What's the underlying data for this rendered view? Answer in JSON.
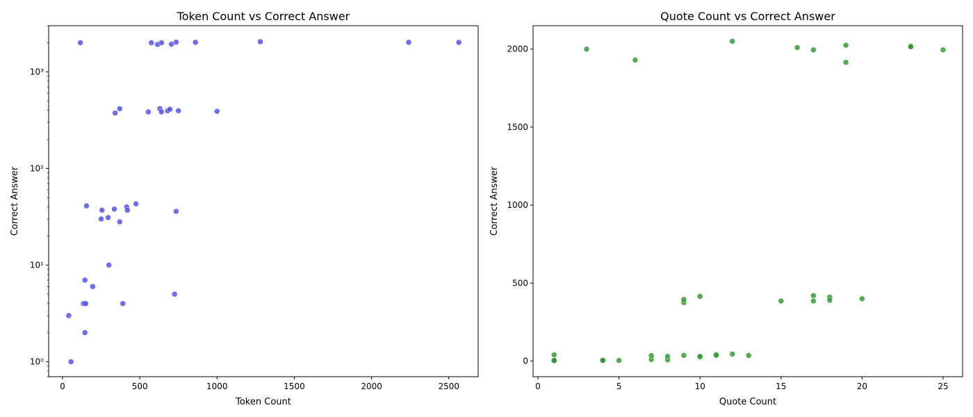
{
  "chart_data": [
    {
      "type": "scatter",
      "title": "Token Count vs Correct Answer",
      "xlabel": "Token Count",
      "ylabel": "Correct Answer",
      "xlim": [
        -90,
        2690
      ],
      "ylim": [
        0.7,
        3000
      ],
      "yscale": "log",
      "grid": false,
      "xticks": [
        0,
        500,
        1000,
        1500,
        2000,
        2500
      ],
      "xtick_labels": [
        "0",
        "500",
        "1000",
        "1500",
        "2000",
        "2500"
      ],
      "yticks": [
        1,
        10,
        100,
        1000
      ],
      "ytick_labels": [
        "10⁰",
        "10¹",
        "10²",
        "10³"
      ],
      "color": "#4a4ae8",
      "series": [
        {
          "points": [
            [
              55,
              1
            ],
            [
              40,
              3
            ],
            [
              145,
              2
            ],
            [
              135,
              4
            ],
            [
              150,
              4
            ],
            [
              390,
              4
            ],
            [
              145,
              7
            ],
            [
              195,
              6
            ],
            [
              300,
              10
            ],
            [
              725,
              5
            ],
            [
              155,
              41
            ],
            [
              255,
              37
            ],
            [
              250,
              30
            ],
            [
              295,
              31
            ],
            [
              335,
              38
            ],
            [
              370,
              28
            ],
            [
              415,
              40
            ],
            [
              420,
              37
            ],
            [
              475,
              43
            ],
            [
              735,
              36
            ],
            [
              340,
              375
            ],
            [
              370,
              415
            ],
            [
              555,
              385
            ],
            [
              630,
              415
            ],
            [
              640,
              385
            ],
            [
              680,
              395
            ],
            [
              695,
              410
            ],
            [
              750,
              395
            ],
            [
              1000,
              390
            ],
            [
              115,
              2000
            ],
            [
              575,
              2000
            ],
            [
              615,
              1920
            ],
            [
              640,
              2000
            ],
            [
              705,
              1930
            ],
            [
              735,
              2025
            ],
            [
              860,
              2020
            ],
            [
              1280,
              2050
            ],
            [
              2240,
              2020
            ],
            [
              2565,
              2015
            ]
          ]
        }
      ]
    },
    {
      "type": "scatter",
      "title": "Quote Count vs Correct Answer",
      "xlabel": "Quote Count",
      "ylabel": "Correct Answer",
      "xlim": [
        -0.3,
        26.2
      ],
      "ylim": [
        -100,
        2150
      ],
      "yscale": "linear",
      "grid": false,
      "xticks": [
        0,
        5,
        10,
        15,
        20,
        25
      ],
      "xtick_labels": [
        "0",
        "5",
        "10",
        "15",
        "20",
        "25"
      ],
      "yticks": [
        0,
        500,
        1000,
        1500,
        2000
      ],
      "ytick_labels": [
        "0",
        "500",
        "1000",
        "1500",
        "2000"
      ],
      "color": "#2a962a",
      "series": [
        {
          "points": [
            [
              1,
              1
            ],
            [
              1,
              3
            ],
            [
              1,
              4
            ],
            [
              1,
              40
            ],
            [
              4,
              2
            ],
            [
              4,
              3
            ],
            [
              4,
              5
            ],
            [
              5,
              4
            ],
            [
              7,
              10
            ],
            [
              7,
              35
            ],
            [
              8,
              8
            ],
            [
              8,
              30
            ],
            [
              9,
              37
            ],
            [
              9,
              375
            ],
            [
              9,
              395
            ],
            [
              10,
              25
            ],
            [
              10,
              30
            ],
            [
              10,
              415
            ],
            [
              11,
              35
            ],
            [
              11,
              40
            ],
            [
              12,
              45
            ],
            [
              13,
              36
            ],
            [
              15,
              385
            ],
            [
              17,
              420
            ],
            [
              17,
              385
            ],
            [
              18,
              410
            ],
            [
              18,
              390
            ],
            [
              20,
              400
            ],
            [
              3,
              2000
            ],
            [
              6,
              1930
            ],
            [
              12,
              2050
            ],
            [
              16,
              2010
            ],
            [
              17,
              1995
            ],
            [
              19,
              2025
            ],
            [
              19,
              1915
            ],
            [
              23,
              2020
            ],
            [
              23,
              2015
            ],
            [
              25,
              1995
            ]
          ]
        }
      ]
    }
  ]
}
